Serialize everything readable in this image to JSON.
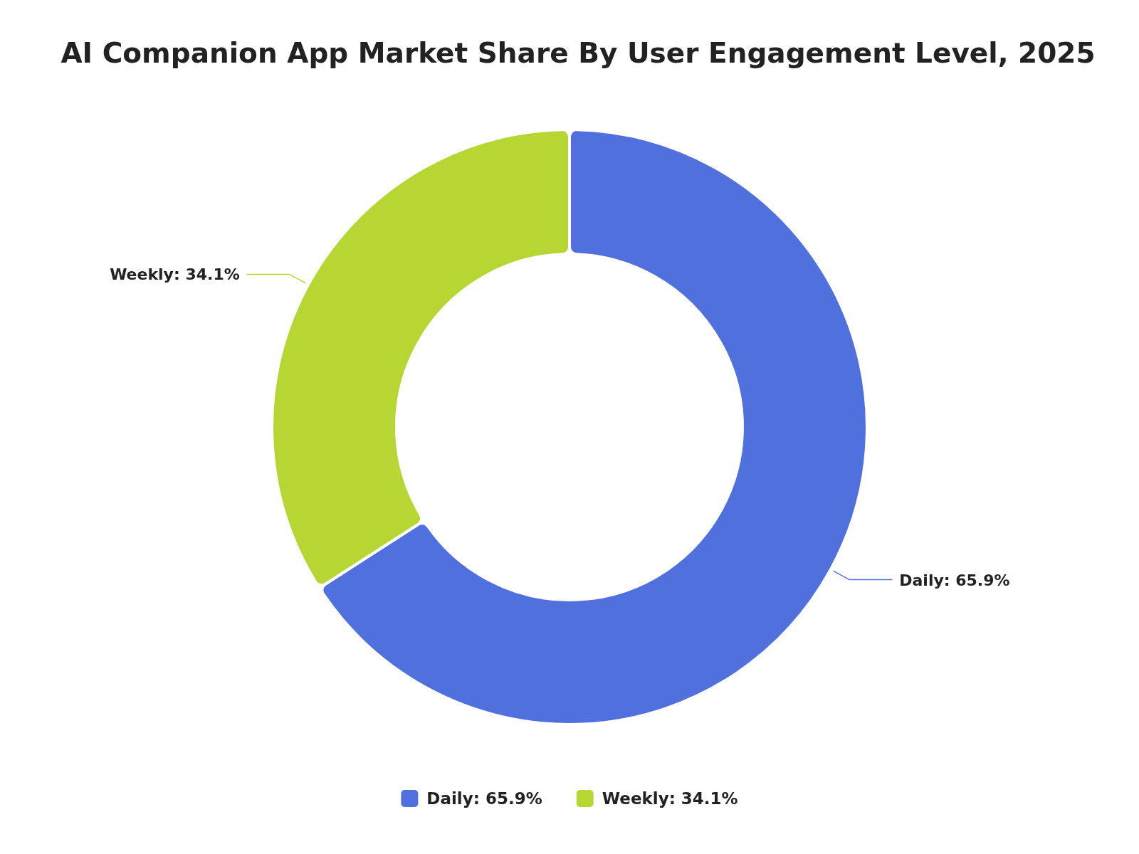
{
  "chart_data": {
    "type": "donut",
    "title": "AI Companion App Market Share By User Engagement Level, 2025",
    "categories": [
      "Daily: 65.9%",
      "Weekly: 34.1%"
    ],
    "values": [
      65.9,
      34.1
    ],
    "colors": [
      "#5070dd",
      "#b6d634"
    ],
    "legend": "bottom"
  }
}
